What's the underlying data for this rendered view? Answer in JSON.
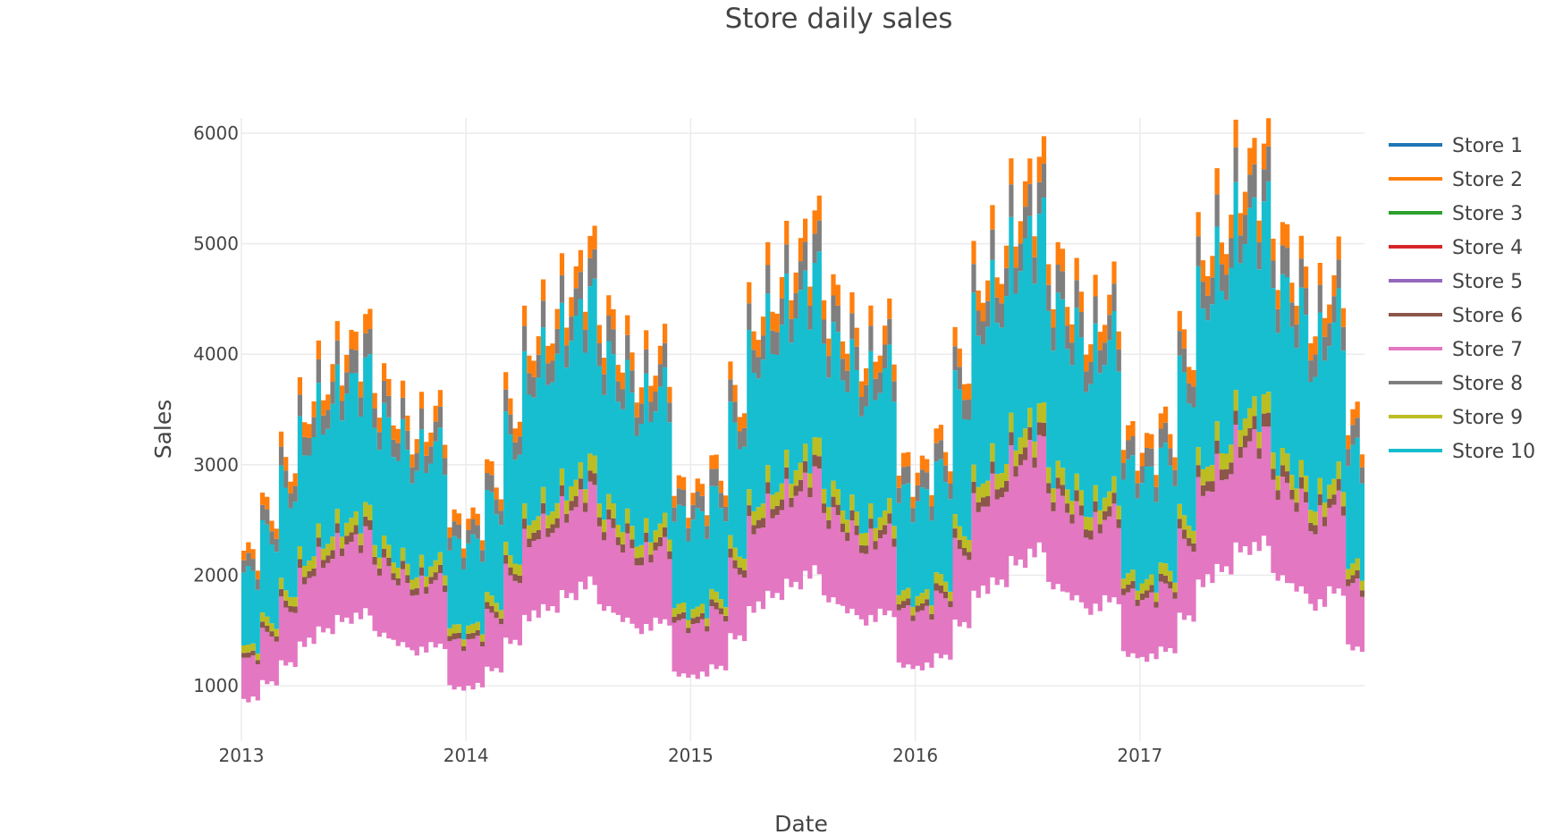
{
  "chart_data": {
    "type": "area",
    "title": "Store daily sales",
    "xlabel": "Date",
    "ylabel": "Sales",
    "xlim": [
      "2013-01-01",
      "2017-12-31"
    ],
    "ylim": [
      500,
      6130
    ],
    "grid": true,
    "legend_position": "right",
    "x_ticks": [
      "2013",
      "2014",
      "2015",
      "2016",
      "2017"
    ],
    "y_ticks": [
      1000,
      2000,
      3000,
      4000,
      5000,
      6000
    ],
    "months": 60,
    "note_values": "monthly approximate top of stacked sales (all stores), Jan 2013 - Dec 2017",
    "total_top": [
      2200,
      2600,
      3000,
      3500,
      3800,
      4000,
      4150,
      3700,
      3450,
      3300,
      3450,
      2450,
      2500,
      2900,
      3500,
      4100,
      4300,
      4550,
      4850,
      4300,
      4000,
      3800,
      4000,
      2750,
      2750,
      2950,
      3600,
      4300,
      4600,
      4800,
      5100,
      4500,
      4200,
      4000,
      4200,
      2950,
      2950,
      3200,
      3900,
      4650,
      4900,
      5300,
      5600,
      4800,
      4500,
      4250,
      4500,
      3200,
      3150,
      3350,
      4050,
      4900,
      5200,
      5600,
      5750,
      5000,
      4700,
      4350,
      4700,
      3350
    ],
    "floor_share": 0.4,
    "series": [
      {
        "name": "Store 1",
        "color": "#1f77b4",
        "share": 0.0
      },
      {
        "name": "Store 2",
        "color": "#ff7f0e",
        "share": 0.04
      },
      {
        "name": "Store 3",
        "color": "#2ca02c",
        "share": 0.0
      },
      {
        "name": "Store 4",
        "color": "#d62728",
        "share": 0.0
      },
      {
        "name": "Store 5",
        "color": "#9467bd",
        "share": 0.0
      },
      {
        "name": "Store 6",
        "color": "#8c564b",
        "share": 0.02
      },
      {
        "name": "Store 7",
        "color": "#e377c2",
        "share": 0.17
      },
      {
        "name": "Store 8",
        "color": "#7f7f7f",
        "share": 0.05
      },
      {
        "name": "Store 9",
        "color": "#bcbd22",
        "share": 0.03
      },
      {
        "name": "Store 10",
        "color": "#17becf",
        "share": 0.3
      }
    ],
    "stack_order": [
      "Store 7",
      "Store 6",
      "Store 9",
      "Store 10",
      "Store 8",
      "Store 2"
    ]
  }
}
